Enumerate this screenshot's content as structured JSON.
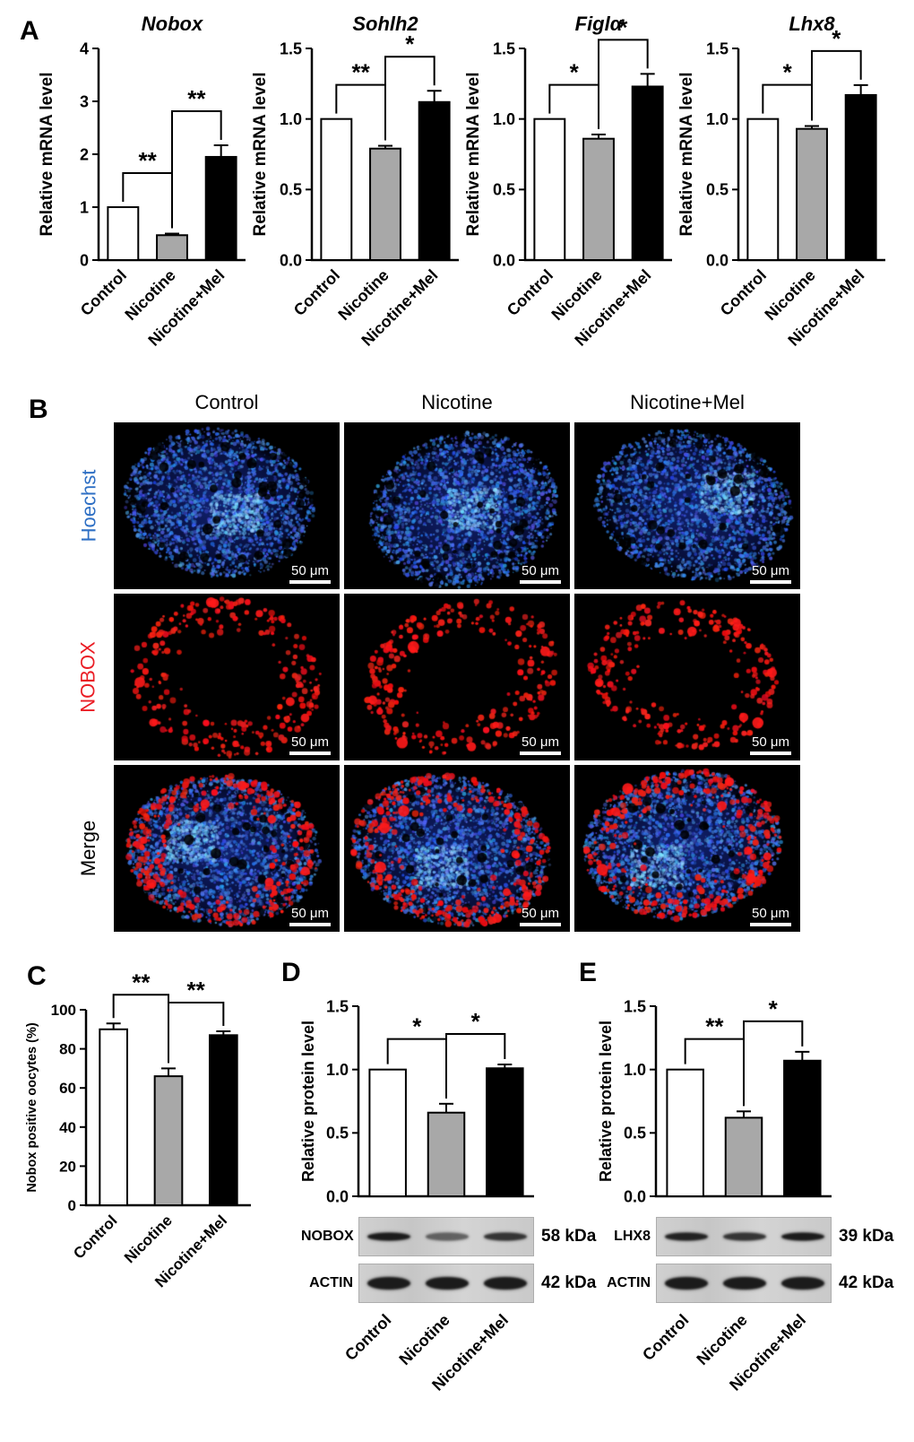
{
  "panels": {
    "A": {
      "label": "A"
    },
    "B": {
      "label": "B",
      "columns": [
        "Control",
        "Nicotine",
        "Nicotine+Mel"
      ],
      "rows": [
        {
          "name": "Hoechst",
          "color": "#2e6fc4",
          "stain": "hoechst"
        },
        {
          "name": "NOBOX",
          "color": "#ea1c24",
          "stain": "nobox"
        },
        {
          "name": "Merge",
          "color": "#000000",
          "stain": "merge"
        }
      ],
      "scale_bar_label": "50 μm"
    },
    "C": {
      "label": "C"
    },
    "D": {
      "label": "D",
      "blots": [
        {
          "name": "NOBOX",
          "kda": "58 kDa",
          "intensities": [
            1.0,
            0.45,
            0.8
          ]
        },
        {
          "name": "ACTIN",
          "kda": "42 kDa",
          "intensities": [
            1.0,
            1.0,
            1.0
          ]
        }
      ]
    },
    "E": {
      "label": "E",
      "blots": [
        {
          "name": "LHX8",
          "kda": "39 kDa",
          "intensities": [
            0.95,
            0.8,
            1.0
          ]
        },
        {
          "name": "ACTIN",
          "kda": "42 kDa",
          "intensities": [
            1.0,
            1.0,
            1.0
          ]
        }
      ]
    }
  },
  "chart_data": [
    {
      "id": "nobox-mrna",
      "panel": "A",
      "type": "bar",
      "title": "Nobox",
      "ylabel": "Relative mRNA level",
      "categories": [
        "Control",
        "Nicotine",
        "Nicotine+Mel"
      ],
      "values": [
        1.0,
        0.47,
        1.95
      ],
      "errors": [
        0,
        0.03,
        0.22
      ],
      "ylim": [
        0,
        4
      ],
      "ytick_labels": [
        "0",
        "1",
        "2",
        "3",
        "4"
      ],
      "bar_colors": [
        "#ffffff",
        "#a8a8a8",
        "#000000"
      ],
      "significance": [
        {
          "pair": [
            0,
            1
          ],
          "label": "**"
        },
        {
          "pair": [
            1,
            2
          ],
          "label": "**"
        }
      ]
    },
    {
      "id": "sohlh2-mrna",
      "panel": "A",
      "type": "bar",
      "title": "Sohlh2",
      "ylabel": "Relative mRNA level",
      "categories": [
        "Control",
        "Nicotine",
        "Nicotine+Mel"
      ],
      "values": [
        1.0,
        0.79,
        1.12
      ],
      "errors": [
        0,
        0.02,
        0.08
      ],
      "ylim": [
        0,
        1.5
      ],
      "ytick_labels": [
        "0.0",
        "0.5",
        "1.0",
        "1.5"
      ],
      "bar_colors": [
        "#ffffff",
        "#a8a8a8",
        "#000000"
      ],
      "significance": [
        {
          "pair": [
            0,
            1
          ],
          "label": "**"
        },
        {
          "pair": [
            1,
            2
          ],
          "label": "*"
        }
      ]
    },
    {
      "id": "figla-mrna",
      "panel": "A",
      "type": "bar",
      "title": "Figlα",
      "ylabel": "Relative mRNA level",
      "categories": [
        "Control",
        "Nicotine",
        "Nicotine+Mel"
      ],
      "values": [
        1.0,
        0.86,
        1.23
      ],
      "errors": [
        0,
        0.03,
        0.09
      ],
      "ylim": [
        0,
        1.5
      ],
      "ytick_labels": [
        "0.0",
        "0.5",
        "1.0",
        "1.5"
      ],
      "bar_colors": [
        "#ffffff",
        "#a8a8a8",
        "#000000"
      ],
      "significance": [
        {
          "pair": [
            0,
            1
          ],
          "label": "*"
        },
        {
          "pair": [
            1,
            2
          ],
          "label": "*"
        }
      ]
    },
    {
      "id": "lhx8-mrna",
      "panel": "A",
      "type": "bar",
      "title": "Lhx8",
      "ylabel": "Relative mRNA level",
      "categories": [
        "Control",
        "Nicotine",
        "Nicotine+Mel"
      ],
      "values": [
        1.0,
        0.93,
        1.17
      ],
      "errors": [
        0,
        0.02,
        0.07
      ],
      "ylim": [
        0,
        1.5
      ],
      "ytick_labels": [
        "0.0",
        "0.5",
        "1.0",
        "1.5"
      ],
      "bar_colors": [
        "#ffffff",
        "#a8a8a8",
        "#000000"
      ],
      "significance": [
        {
          "pair": [
            0,
            1
          ],
          "label": "*"
        },
        {
          "pair": [
            1,
            2
          ],
          "label": "*"
        }
      ]
    },
    {
      "id": "nobox-positive-oocytes",
      "panel": "C",
      "type": "bar",
      "title": "",
      "ylabel": "Nobox positive oocytes (%)",
      "categories": [
        "Control",
        "Nicotine",
        "Nicotine+Mel"
      ],
      "values": [
        90,
        66,
        87
      ],
      "errors": [
        3,
        4,
        2
      ],
      "ylim": [
        0,
        100
      ],
      "ytick_labels": [
        "0",
        "20",
        "40",
        "60",
        "80",
        "100"
      ],
      "bar_colors": [
        "#ffffff",
        "#a8a8a8",
        "#000000"
      ],
      "significance": [
        {
          "pair": [
            0,
            1
          ],
          "label": "**"
        },
        {
          "pair": [
            1,
            2
          ],
          "label": "**"
        }
      ]
    },
    {
      "id": "nobox-protein",
      "panel": "D",
      "type": "bar",
      "title": "",
      "ylabel": "Relative protein level",
      "categories": [
        "Control",
        "Nicotine",
        "Nicotine+Mel"
      ],
      "values": [
        1.0,
        0.66,
        1.01
      ],
      "errors": [
        0,
        0.07,
        0.03
      ],
      "ylim": [
        0,
        1.5
      ],
      "ytick_labels": [
        "0.0",
        "0.5",
        "1.0",
        "1.5"
      ],
      "bar_colors": [
        "#ffffff",
        "#a8a8a8",
        "#000000"
      ],
      "significance": [
        {
          "pair": [
            0,
            1
          ],
          "label": "*"
        },
        {
          "pair": [
            1,
            2
          ],
          "label": "*"
        }
      ]
    },
    {
      "id": "lhx8-protein",
      "panel": "E",
      "type": "bar",
      "title": "",
      "ylabel": "Relative protein level",
      "categories": [
        "Control",
        "Nicotine",
        "Nicotine+Mel"
      ],
      "values": [
        1.0,
        0.62,
        1.07
      ],
      "errors": [
        0,
        0.05,
        0.07
      ],
      "ylim": [
        0,
        1.5
      ],
      "ytick_labels": [
        "0.0",
        "0.5",
        "1.0",
        "1.5"
      ],
      "bar_colors": [
        "#ffffff",
        "#a8a8a8",
        "#000000"
      ],
      "significance": [
        {
          "pair": [
            0,
            1
          ],
          "label": "**"
        },
        {
          "pair": [
            1,
            2
          ],
          "label": "*"
        }
      ]
    }
  ]
}
